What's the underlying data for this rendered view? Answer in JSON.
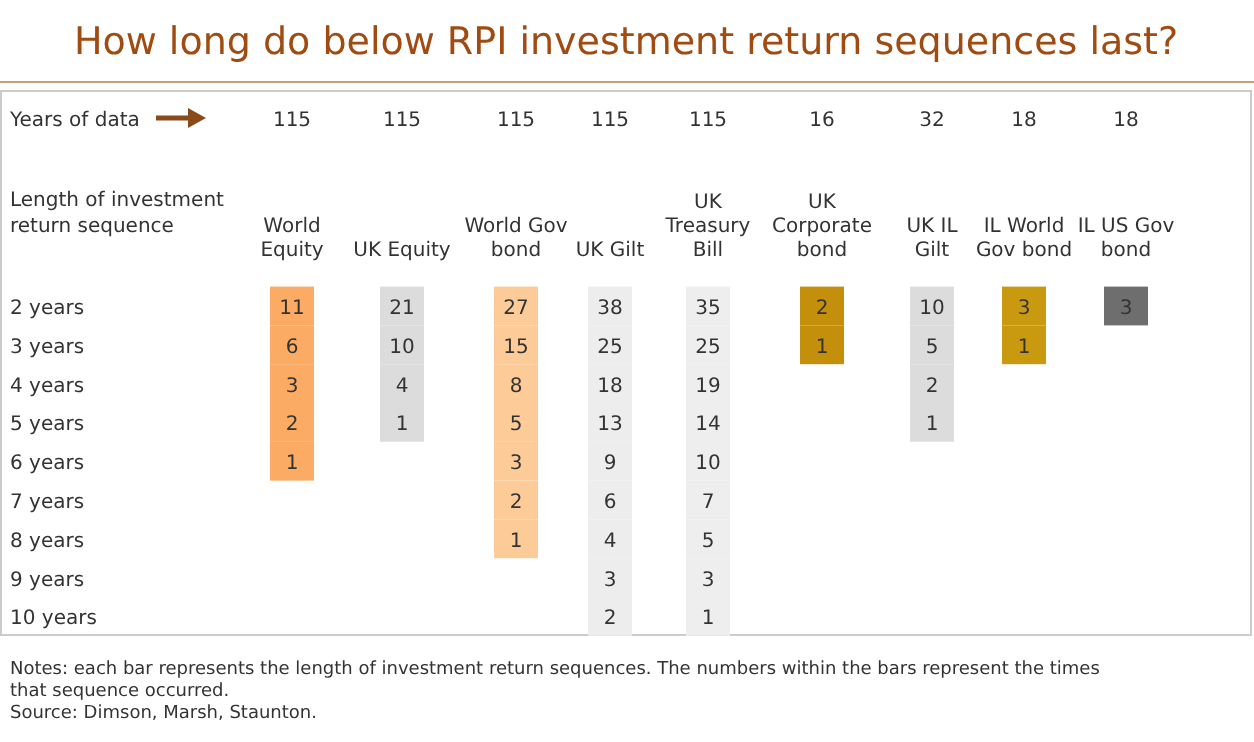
{
  "chart_data": {
    "type": "heatmap",
    "title": "How long do below RPI investment return sequences last?",
    "ylabel": "Length of investment return sequence",
    "categories": [
      "World Equity",
      "UK Equity",
      "World Gov bond",
      "UK Gilt",
      "UK Treasury Bill",
      "UK Corporate bond",
      "UK IL Gilt",
      "IL World Gov bond",
      "IL US Gov bond"
    ],
    "y_categories": [
      "2 years",
      "3 years",
      "4 years",
      "5 years",
      "6 years",
      "7 years",
      "8 years",
      "9 years",
      "10 years"
    ],
    "colors": [
      "#fbab63",
      "#dcdcdc",
      "#fdcb97",
      "#ededed",
      "#eeeeee",
      "#c48f0a",
      "#dcdcdc",
      "#c99a10",
      "#6e6e6e"
    ],
    "cells": [
      [
        11,
        21,
        27,
        38,
        35,
        2,
        10,
        3,
        3
      ],
      [
        6,
        10,
        15,
        25,
        25,
        1,
        5,
        1,
        null
      ],
      [
        3,
        4,
        8,
        18,
        19,
        null,
        2,
        null,
        null
      ],
      [
        2,
        1,
        5,
        13,
        14,
        null,
        1,
        null,
        null
      ],
      [
        1,
        null,
        3,
        9,
        10,
        null,
        null,
        null,
        null
      ],
      [
        null,
        null,
        2,
        6,
        7,
        null,
        null,
        null,
        null
      ],
      [
        null,
        null,
        1,
        4,
        5,
        null,
        null,
        null,
        null
      ],
      [
        null,
        null,
        null,
        3,
        3,
        null,
        null,
        null,
        null
      ],
      [
        null,
        null,
        null,
        2,
        1,
        null,
        null,
        null,
        null
      ]
    ],
    "data_labels": true,
    "annotations": [
      "Years of data",
      "115",
      "115",
      "115",
      "115",
      "115",
      "16",
      "32",
      "18",
      "18",
      "Notes: each bar represents the length of investment return sequences.  The numbers within the bars represent the times that sequence occurred.",
      "Source: Dimson, Marsh, Staunton."
    ]
  }
}
